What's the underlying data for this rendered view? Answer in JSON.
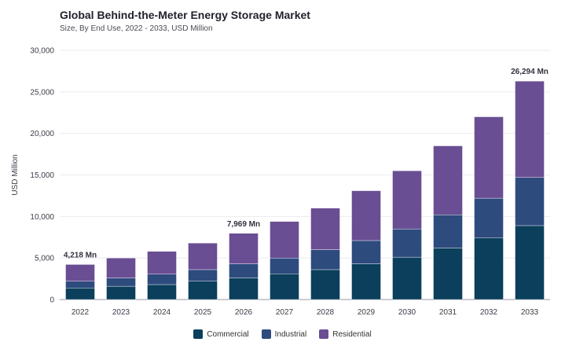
{
  "header": {
    "title": "Global Behind-the-Meter Energy Storage Market",
    "subtitle": "Size, By End Use, 2022 - 2033, USD Million"
  },
  "chart_data": {
    "type": "bar",
    "stacked": true,
    "title": "Global Behind-the-Meter Energy Storage Market",
    "subtitle": "Size, By End Use, 2022 - 2033, USD Million",
    "xlabel": "",
    "ylabel": "USD Million",
    "ylim": [
      0,
      30000
    ],
    "yticks": [
      0,
      5000,
      10000,
      15000,
      20000,
      25000,
      30000
    ],
    "ytick_labels": [
      "0",
      "5,000",
      "10,000",
      "15,000",
      "20,000",
      "25,000",
      "30,000"
    ],
    "grid": true,
    "legend_position": "bottom-center",
    "categories": [
      "2022",
      "2023",
      "2024",
      "2025",
      "2026",
      "2027",
      "2028",
      "2029",
      "2030",
      "2031",
      "2032",
      "2033"
    ],
    "series": [
      {
        "name": "Commercial",
        "color": "#0b3f5c",
        "values": [
          1400,
          1600,
          1800,
          2200,
          2600,
          3100,
          3600,
          4300,
          5100,
          6200,
          7400,
          8900
        ]
      },
      {
        "name": "Industrial",
        "color": "#2e4b7e",
        "values": [
          800,
          1000,
          1250,
          1400,
          1700,
          1900,
          2400,
          2800,
          3400,
          4000,
          4800,
          5800
        ]
      },
      {
        "name": "Residential",
        "color": "#6a4e93",
        "values": [
          2018,
          2400,
          2750,
          3200,
          3669,
          4400,
          5000,
          6000,
          7000,
          8300,
          9800,
          11594
        ]
      }
    ],
    "annotations": [
      {
        "category": "2022",
        "text": "4,218 Mn"
      },
      {
        "category": "2026",
        "text": "7,969 Mn"
      },
      {
        "category": "2033",
        "text": "26,294 Mn"
      }
    ]
  }
}
